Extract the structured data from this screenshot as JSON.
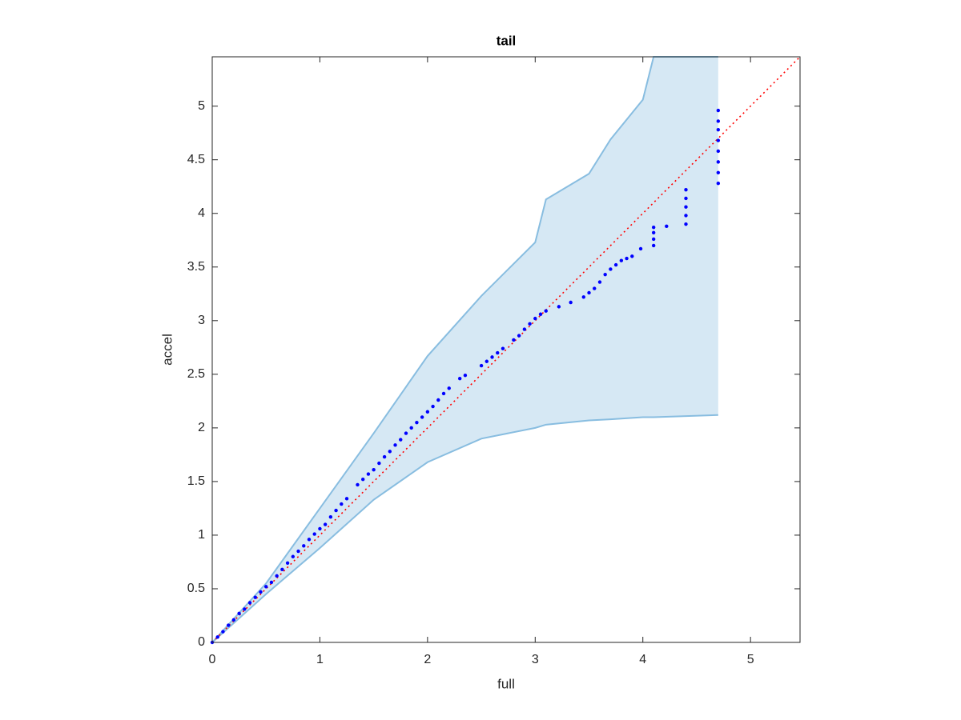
{
  "chart_data": {
    "type": "scatter",
    "title": "tail",
    "xlabel": "full",
    "ylabel": "accel",
    "xlim": [
      0,
      5.46
    ],
    "ylim": [
      0,
      5.46
    ],
    "xticks": [
      0,
      1,
      2,
      3,
      4,
      5
    ],
    "yticks": [
      0,
      0.5,
      1,
      1.5,
      2,
      2.5,
      3,
      3.5,
      4,
      4.5,
      5
    ],
    "color": "#0000ff",
    "x": [
      0,
      0.05,
      0.1,
      0.15,
      0.2,
      0.25,
      0.3,
      0.35,
      0.4,
      0.45,
      0.5,
      0.55,
      0.6,
      0.65,
      0.7,
      0.75,
      0.8,
      0.85,
      0.9,
      0.95,
      1.0,
      1.05,
      1.1,
      1.15,
      1.2,
      1.25,
      1.35,
      1.4,
      1.45,
      1.5,
      1.55,
      1.6,
      1.65,
      1.7,
      1.75,
      1.8,
      1.85,
      1.9,
      1.95,
      2.0,
      2.05,
      2.1,
      2.15,
      2.2,
      2.3,
      2.35,
      2.5,
      2.55,
      2.6,
      2.65,
      2.7,
      2.8,
      2.85,
      2.9,
      2.95,
      3.0,
      3.05,
      3.1,
      3.22,
      3.33,
      3.45,
      3.5,
      3.55,
      3.6,
      3.65,
      3.7,
      3.75,
      3.8,
      3.85,
      3.9,
      3.98,
      4.1,
      4.1,
      4.1,
      4.1,
      4.22,
      4.4,
      4.4,
      4.4,
      4.4,
      4.4,
      4.7,
      4.7,
      4.7,
      4.7,
      4.7,
      4.7,
      4.7,
      4.7
    ],
    "y": [
      0,
      0.05,
      0.1,
      0.16,
      0.21,
      0.27,
      0.31,
      0.37,
      0.42,
      0.47,
      0.52,
      0.56,
      0.62,
      0.68,
      0.74,
      0.8,
      0.85,
      0.9,
      0.96,
      1.01,
      1.06,
      1.1,
      1.17,
      1.23,
      1.29,
      1.34,
      1.47,
      1.52,
      1.57,
      1.61,
      1.67,
      1.73,
      1.78,
      1.84,
      1.89,
      1.95,
      2.0,
      2.05,
      2.1,
      2.15,
      2.2,
      2.26,
      2.32,
      2.37,
      2.46,
      2.49,
      2.58,
      2.62,
      2.66,
      2.7,
      2.74,
      2.82,
      2.86,
      2.92,
      2.97,
      3.02,
      3.06,
      3.09,
      3.13,
      3.17,
      3.22,
      3.26,
      3.3,
      3.36,
      3.43,
      3.48,
      3.52,
      3.56,
      3.58,
      3.6,
      3.67,
      3.7,
      3.76,
      3.82,
      3.87,
      3.88,
      3.9,
      3.98,
      4.06,
      4.14,
      4.22,
      4.28,
      4.38,
      4.48,
      4.58,
      4.68,
      4.78,
      4.86,
      4.96
    ],
    "band": {
      "x": [
        0,
        0.5,
        1,
        1.5,
        2,
        2.5,
        3,
        3.1,
        3.5,
        3.7,
        4,
        4.1,
        4.7
      ],
      "lower": [
        0,
        0.45,
        0.88,
        1.33,
        1.68,
        1.9,
        2.0,
        2.03,
        2.07,
        2.08,
        2.1,
        2.1,
        2.12
      ],
      "upper": [
        0,
        0.55,
        1.25,
        1.95,
        2.67,
        3.23,
        3.73,
        4.13,
        4.37,
        4.69,
        5.06,
        5.46,
        5.46
      ],
      "color": "#d6e8f4",
      "edge_color": "#88bde0"
    },
    "reference_line": {
      "x": [
        0,
        5.46
      ],
      "y": [
        0,
        5.46
      ],
      "color": "#ff0000"
    }
  }
}
